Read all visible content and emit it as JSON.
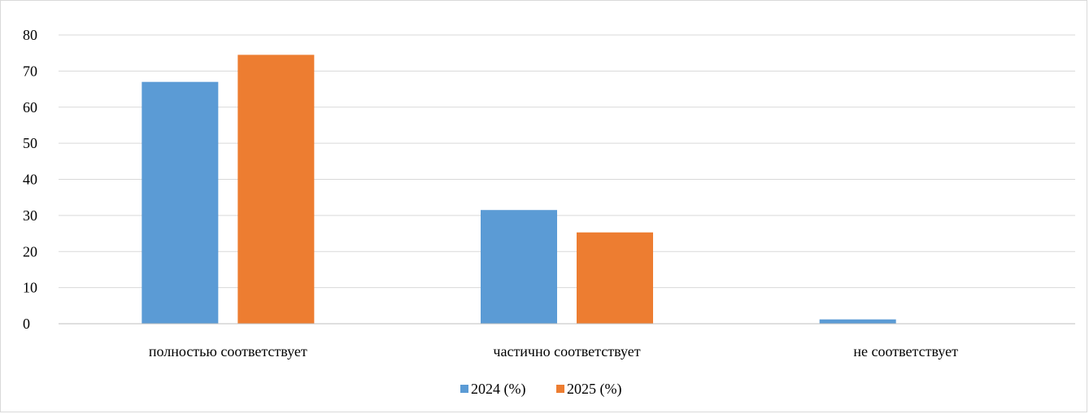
{
  "colors": {
    "series_2024": "#5B9BD5",
    "series_2025": "#ED7D31",
    "gridline": "#d9d9d9",
    "axis": "#bfbfbf"
  },
  "chart_data": {
    "type": "bar",
    "categories": [
      "полностью соответствует",
      "частично соответствует",
      "не соответствует"
    ],
    "series": [
      {
        "name": "2024 (%)",
        "values": [
          67,
          31.5,
          1.2
        ]
      },
      {
        "name": "2025 (%)",
        "values": [
          74.5,
          25.3,
          0
        ]
      }
    ],
    "title": "",
    "xlabel": "",
    "ylabel": "",
    "ylim": [
      0,
      80
    ],
    "yticks": [
      0,
      10,
      20,
      30,
      40,
      50,
      60,
      70,
      80
    ],
    "grid": true,
    "legend_position": "bottom"
  }
}
